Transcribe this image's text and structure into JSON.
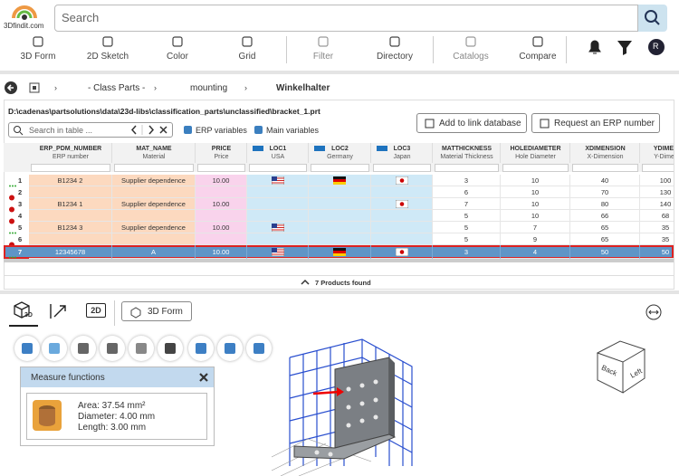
{
  "header": {
    "logo": "3Dfindit.com",
    "search_placeholder": "Search",
    "avatar": "R"
  },
  "toolbar": [
    "3D Form",
    "2D Sketch",
    "Color",
    "Grid",
    "Filter",
    "Directory",
    "Catalogs",
    "Compare"
  ],
  "breadcrumb": [
    "- Class Parts -",
    "mounting",
    "Winkelhalter"
  ],
  "file_path": "D:\\cadenas\\partsolutions\\data\\23d-libs\\classification_parts\\unclassified\\bracket_1.prt",
  "actions": [
    "Add to link database",
    "Request an ERP number"
  ],
  "table_search_placeholder": "Search in table ...",
  "checkboxes": [
    "ERP variables",
    "Main variables"
  ],
  "table": {
    "columns": [
      {
        "name": "ERP_PDM_NUMBER",
        "label": "ERP number"
      },
      {
        "name": "MAT_NAME",
        "label": "Material"
      },
      {
        "name": "PRICE",
        "label": "Price"
      },
      {
        "name": "LOC1",
        "label": "USA"
      },
      {
        "name": "LOC2",
        "label": "Germany"
      },
      {
        "name": "LOC3",
        "label": "Japan"
      },
      {
        "name": "MATTHICKNESS",
        "label": "Material Thickness"
      },
      {
        "name": "HOLEDIAMETER",
        "label": "Hole Diameter"
      },
      {
        "name": "XDIMENSION",
        "label": "X-Dimension"
      },
      {
        "name": "YDIMEN",
        "label": "Y-Dimen"
      }
    ],
    "rows": [
      {
        "number": "1",
        "cells": [
          "B1234 2",
          "Supplier dependence",
          "10.00",
          null,
          null,
          null,
          "3",
          "10",
          "40",
          "100"
        ]
      },
      {
        "number": "2",
        "cells": [
          null,
          null,
          null,
          null,
          null,
          null,
          "6",
          "10",
          "70",
          "130"
        ]
      },
      {
        "number": "3",
        "cells": [
          "B1234 1",
          "Supplier dependence",
          "10.00",
          null,
          null,
          null,
          "7",
          "10",
          "80",
          "140"
        ]
      },
      {
        "number": "4",
        "cells": [
          null,
          null,
          null,
          null,
          null,
          null,
          "5",
          "10",
          "66",
          "68"
        ]
      },
      {
        "number": "5",
        "cells": [
          "B1234 3",
          "Supplier dependence",
          "10.00",
          null,
          null,
          null,
          "5",
          "7",
          "65",
          "35"
        ]
      },
      {
        "number": "6",
        "cells": [
          null,
          null,
          null,
          null,
          null,
          null,
          "5",
          "9",
          "65",
          "35"
        ]
      },
      {
        "number": "7",
        "cells": [
          "12345678",
          "A",
          "10.00",
          null,
          null,
          null,
          "3",
          "4",
          "50",
          "50"
        ]
      }
    ],
    "footer": "7 Products found"
  },
  "viewer": {
    "tab_3d": "3D",
    "tab_2d": "2D",
    "form_button": "3D Form",
    "measure": {
      "title": "Measure functions",
      "lines": [
        "Area: 37.54 mm²",
        "Diameter: 4.00 mm",
        "Length: 3.00 mm"
      ]
    },
    "cube": [
      "Back",
      "Left"
    ]
  }
}
